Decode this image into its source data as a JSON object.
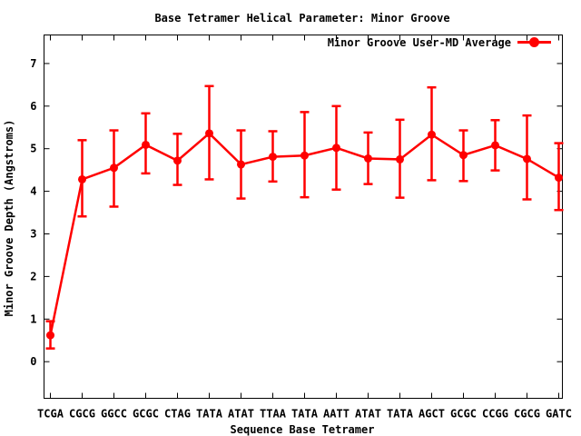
{
  "chart_data": {
    "type": "line",
    "title": "Base Tetramer Helical Parameter: Minor Groove",
    "xlabel": "Sequence Base Tetramer",
    "ylabel": "Minor Groove Depth (Angstroms)",
    "legend": {
      "label": "Minor Groove User-MD Average",
      "position": "top-right-inside",
      "marker": "filled-circle-on-line"
    },
    "series_color": "#ff0000",
    "text_color": "#000000",
    "background": "#ffffff",
    "grid": false,
    "marker": "filled-circle",
    "error_bars": true,
    "categories": [
      "TCGA",
      "CGCG",
      "GGCC",
      "GCGC",
      "CTAG",
      "TATA",
      "ATAT",
      "TTAA",
      "TATA",
      "AATT",
      "ATAT",
      "TATA",
      "AGCT",
      "GCGC",
      "CCGG",
      "CGCG",
      "GATC"
    ],
    "values": [
      0.62,
      4.28,
      4.55,
      5.09,
      4.72,
      5.36,
      4.63,
      4.81,
      4.84,
      5.02,
      4.77,
      4.75,
      5.33,
      4.85,
      5.08,
      4.76,
      4.32
    ],
    "error_upper": [
      0.95,
      5.2,
      5.43,
      5.83,
      5.35,
      6.47,
      5.43,
      5.41,
      5.86,
      6.0,
      5.38,
      5.68,
      6.44,
      5.43,
      5.67,
      5.78,
      5.13
    ],
    "error_lower": [
      0.31,
      3.41,
      3.64,
      4.42,
      4.15,
      4.28,
      3.83,
      4.23,
      3.86,
      4.04,
      4.17,
      3.85,
      4.26,
      4.24,
      4.49,
      3.81,
      3.56
    ],
    "yticks": [
      0,
      1,
      2,
      3,
      4,
      5,
      6,
      7
    ],
    "ylim": [
      -0.86,
      7.67
    ]
  }
}
